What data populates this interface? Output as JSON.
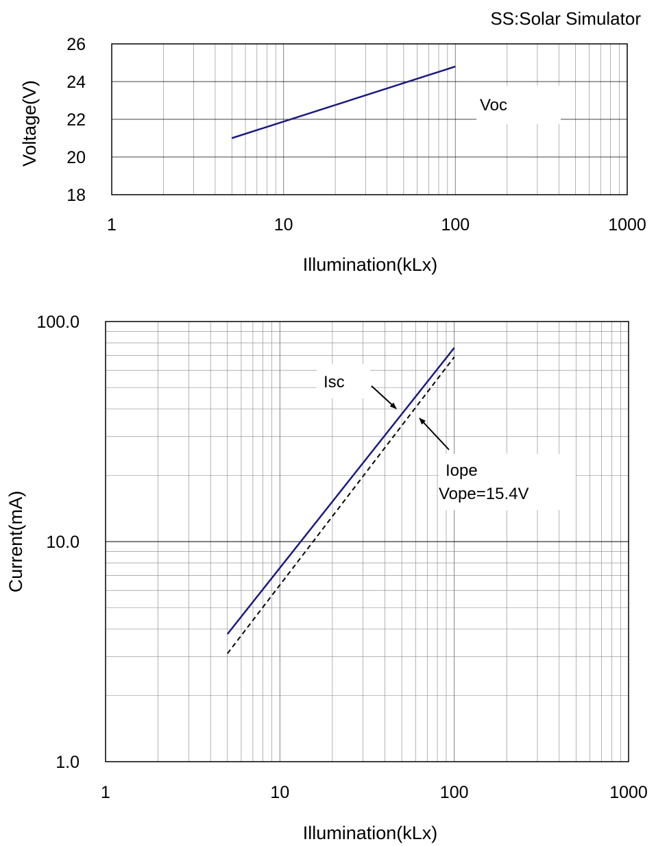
{
  "caption": "SS:Solar Simulator",
  "colors": {
    "series": "#1a1a80",
    "dashed": "#000000",
    "grid": "#808080"
  },
  "chart_data": [
    {
      "type": "line",
      "x_scale": "log",
      "y_scale": "linear",
      "xlim": [
        1,
        1000
      ],
      "ylim": [
        18,
        26
      ],
      "xticks": [
        "1",
        "10",
        "100",
        "1000"
      ],
      "yticks": [
        "18",
        "20",
        "22",
        "24",
        "26"
      ],
      "xlabel": "Illumination(kLx)",
      "ylabel": "Voltage(V)",
      "grid": true,
      "series": [
        {
          "name": "Voc",
          "style": "solid",
          "x": [
            5,
            100
          ],
          "y": [
            21.0,
            24.8
          ]
        }
      ]
    },
    {
      "type": "line",
      "x_scale": "log",
      "y_scale": "log",
      "xlim": [
        1,
        1000
      ],
      "ylim": [
        1.0,
        100.0
      ],
      "xticks": [
        "1",
        "10",
        "100",
        "1000"
      ],
      "yticks": [
        "1.0",
        "10.0",
        "100.0"
      ],
      "xlabel": "Illumination(kLx)",
      "ylabel": "Current(mA)",
      "grid": true,
      "series": [
        {
          "name": "Isc",
          "style": "solid",
          "x": [
            5,
            100
          ],
          "y": [
            3.8,
            76
          ]
        },
        {
          "name": "Iope",
          "style": "dashed",
          "x": [
            5,
            100
          ],
          "y": [
            3.1,
            69
          ]
        }
      ],
      "annotations": [
        "Isc",
        "Iope",
        "Vope=15.4V"
      ]
    }
  ]
}
